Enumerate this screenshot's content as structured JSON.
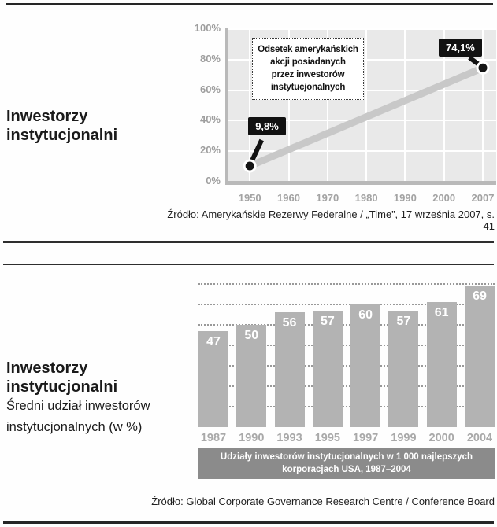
{
  "section_top": {
    "sidebar_title": [
      "Inwestorzy",
      "instytucjonalni"
    ],
    "source": "Źródło: Amerykańskie Rezerwy Federalne / „Time”, 17 września 2007, s. 41"
  },
  "section_bottom": {
    "sidebar_title": [
      "Inwestorzy",
      "instytucjonalni"
    ],
    "sidebar_subtitle": [
      "Średni udział inwestorów",
      "instytucjonalnych (w %)"
    ],
    "source": "Źródło: Global Corporate Governance Research Centre / Conference Board"
  },
  "chart_data": [
    {
      "type": "line",
      "title": "Odsetek amerykańskich akcji posiadanych przez inwestorów instytucjonalnych",
      "annotation_lines": [
        "Odsetek amerykańskich",
        "akcji posiadanych",
        "przez inwestorów",
        "instytucjonalnych"
      ],
      "x": [
        1950,
        2007
      ],
      "y": [
        9.8,
        74.1
      ],
      "point_labels": [
        "9,8%",
        "74,1%"
      ],
      "x_ticks": [
        "1950",
        "1960",
        "1970",
        "1980",
        "1990",
        "2000",
        "2007"
      ],
      "y_tick_values": [
        100,
        80,
        60,
        40,
        20,
        0
      ],
      "y_tick_labels": [
        "100%",
        "80%",
        "60%",
        "40%",
        "20%",
        "0%"
      ],
      "xlabel": "",
      "ylabel": "",
      "ylim": [
        0,
        100
      ],
      "grid": true,
      "colors": {
        "line": "#c8c8c8",
        "marker": "#141414",
        "marker_ring": "#ffffff",
        "callout_bg": "#111111",
        "callout_text": "#ffffff",
        "plot_bg": "#e9e9e9",
        "axis": "#b9b9b9",
        "tick_text": "#9e9e9e"
      }
    },
    {
      "type": "bar",
      "categories": [
        "1987",
        "1990",
        "1993",
        "1995",
        "1997",
        "1999",
        "2000",
        "2004"
      ],
      "values": [
        47,
        50,
        56,
        57,
        60,
        57,
        61,
        69
      ],
      "ylim": [
        0,
        73
      ],
      "gridline_values": [
        10,
        20,
        30,
        40,
        50,
        60,
        70
      ],
      "grid": true,
      "caption_lines": [
        "Udziały inwestorów instytucjonalnych w 1 000 najlepszych",
        "korporacjach USA, 1987–2004"
      ],
      "xlabel": "",
      "ylabel": "",
      "colors": {
        "bar": "#b3b3b3",
        "bar_label": "#ffffff",
        "caption_bg": "#8b8b8b",
        "caption_text": "#ffffff",
        "tick_text": "#a9a9a9",
        "grid": "#999999"
      }
    }
  ]
}
